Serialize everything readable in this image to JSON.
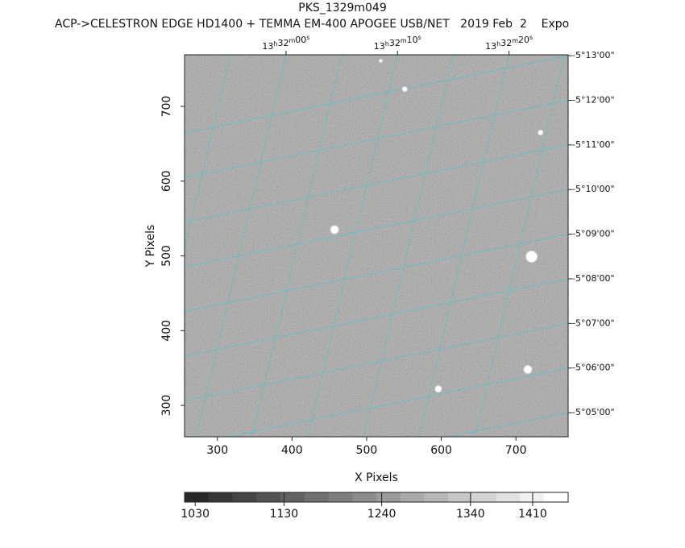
{
  "chart_data": {
    "type": "image",
    "title": "PKS_1329m049",
    "subtitle": "ACP->CELESTRON EDGE HD1400 + TEMMA EM-400 APOGEE USB/NET   2019 Feb  2    Expo",
    "xlabel": "X Pixels",
    "ylabel": "Y Pixels",
    "xlim": [
      256,
      770
    ],
    "xticks": [
      300,
      400,
      500,
      600,
      700
    ],
    "ylim": [
      258,
      769
    ],
    "yticks": [
      300,
      400,
      500,
      600,
      700
    ],
    "ralim": [
      -9.1,
      25.3
    ],
    "raticks": [
      {
        "value": 0,
        "label": "13h32m00s"
      },
      {
        "value": 10,
        "label": "13h32m10s"
      },
      {
        "value": 20,
        "label": "13h32m20s"
      }
    ],
    "declim": [
      -313.02,
      -304.46
    ],
    "decticks": [
      {
        "value": -313,
        "label": "-5°13'00\""
      },
      {
        "value": -312,
        "label": "-5°12'00\""
      },
      {
        "value": -311,
        "label": "-5°11'00\""
      },
      {
        "value": -310,
        "label": "-5°10'00\""
      },
      {
        "value": -309,
        "label": "-5°09'00\""
      },
      {
        "value": -308,
        "label": "-5°08'00\""
      },
      {
        "value": -307,
        "label": "-5°07'00\""
      },
      {
        "value": -306,
        "label": "-5°06'00\""
      },
      {
        "value": -305,
        "label": "-5°05'00\""
      }
    ],
    "grid_color": "#3ec8d0",
    "sources": {
      "x": [
        457,
        551,
        519,
        733,
        721,
        716,
        596
      ],
      "y": [
        535,
        723,
        761,
        665,
        499,
        348,
        322
      ],
      "size": [
        5,
        3,
        2,
        3,
        7,
        5,
        4
      ]
    },
    "clim": [
      1018,
      1450
    ],
    "cticks": [
      1030,
      1130,
      1240,
      1340,
      1410
    ]
  }
}
